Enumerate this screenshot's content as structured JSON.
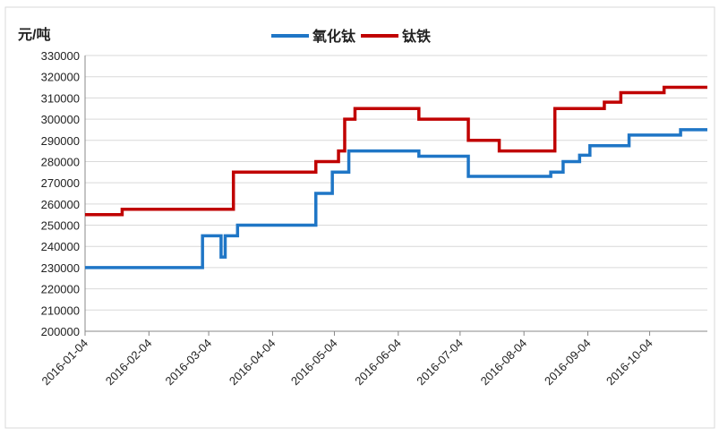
{
  "chart_data": {
    "type": "line",
    "step": "post",
    "y_label": "元/吨",
    "xlim": [
      "2016-01-04",
      "2016-11-01"
    ],
    "xticks": [
      "2016-01-04",
      "2016-02-04",
      "2016-03-04",
      "2016-04-04",
      "2016-05-04",
      "2016-06-04",
      "2016-07-04",
      "2016-08-04",
      "2016-09-04",
      "2016-10-04"
    ],
    "ylim": [
      200000,
      330000
    ],
    "yticks": [
      200000,
      210000,
      220000,
      230000,
      240000,
      250000,
      260000,
      270000,
      280000,
      290000,
      300000,
      310000,
      320000,
      330000
    ],
    "grid": true,
    "legend": "top",
    "series": [
      {
        "name": "氧化钛",
        "color": "#1f76c6",
        "x": [
          "2016-01-04",
          "2016-03-01",
          "2016-03-10",
          "2016-03-12",
          "2016-03-18",
          "2016-04-25",
          "2016-05-03",
          "2016-05-11",
          "2016-06-14",
          "2016-07-08",
          "2016-08-17",
          "2016-08-23",
          "2016-08-31",
          "2016-09-05",
          "2016-09-24",
          "2016-10-19",
          "2016-11-01"
        ],
        "values": [
          230000,
          245000,
          235000,
          245000,
          250000,
          265000,
          275000,
          285000,
          282500,
          273000,
          275000,
          280000,
          283000,
          287500,
          292500,
          295000,
          295000
        ]
      },
      {
        "name": "钛铁",
        "color": "#c00000",
        "x": [
          "2016-01-04",
          "2016-01-22",
          "2016-03-16",
          "2016-04-25",
          "2016-05-06",
          "2016-05-09",
          "2016-05-14",
          "2016-06-14",
          "2016-07-08",
          "2016-07-23",
          "2016-08-19",
          "2016-09-12",
          "2016-09-20",
          "2016-10-11",
          "2016-11-01"
        ],
        "values": [
          255000,
          257500,
          275000,
          280000,
          285000,
          300000,
          305000,
          300000,
          290000,
          285000,
          305000,
          308000,
          312500,
          315000,
          315000
        ]
      }
    ]
  }
}
